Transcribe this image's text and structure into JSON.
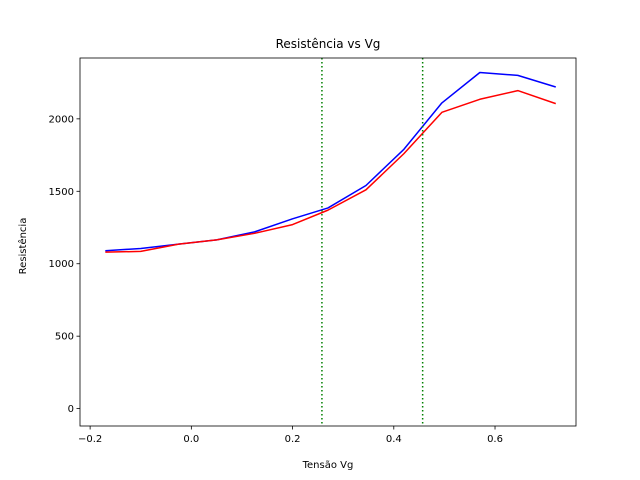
{
  "chart_data": {
    "type": "line",
    "title": "Resistência vs Vg",
    "xlabel": "Tensão Vg",
    "ylabel": "Resistência",
    "xlim": [
      -0.22,
      0.76
    ],
    "ylim": [
      -120,
      2420
    ],
    "xticks": [
      -0.2,
      0.0,
      0.2,
      0.4,
      0.6
    ],
    "xtick_labels": [
      "−0.2",
      "0.0",
      "0.2",
      "0.4",
      "0.6"
    ],
    "yticks": [
      0,
      500,
      1000,
      1500,
      2000
    ],
    "ytick_labels": [
      "0",
      "500",
      "1000",
      "1500",
      "2000"
    ],
    "grid": false,
    "series": [
      {
        "color": "#0000ff",
        "x": [
          -0.17,
          -0.1,
          -0.025,
          0.05,
          0.125,
          0.2,
          0.27,
          0.345,
          0.42,
          0.495,
          0.57,
          0.645,
          0.72
        ],
        "y": [
          1090,
          1105,
          1135,
          1165,
          1220,
          1310,
          1385,
          1540,
          1790,
          2110,
          2320,
          2300,
          2220
        ]
      },
      {
        "color": "#ff0000",
        "x": [
          -0.17,
          -0.1,
          -0.025,
          0.05,
          0.125,
          0.2,
          0.27,
          0.345,
          0.42,
          0.495,
          0.57,
          0.645,
          0.72
        ],
        "y": [
          1080,
          1085,
          1135,
          1165,
          1210,
          1270,
          1370,
          1510,
          1760,
          2045,
          2135,
          2195,
          2105
        ]
      }
    ],
    "vlines": [
      {
        "x": 0.258,
        "color": "#008000",
        "style": "dotted"
      },
      {
        "x": 0.457,
        "color": "#008000",
        "style": "dotted"
      }
    ]
  }
}
